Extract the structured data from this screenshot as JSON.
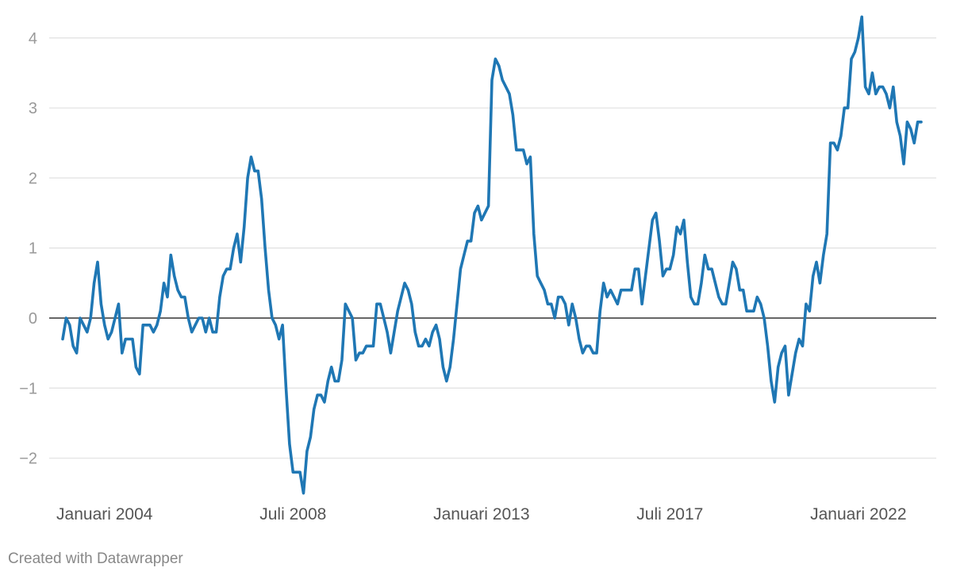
{
  "footer": {
    "credit": "Created with Datawrapper"
  },
  "colors": {
    "line": "#1f77b4",
    "grid": "#e3e3e3",
    "zero": "#333333",
    "tick": "#999999"
  },
  "chart_data": {
    "type": "line",
    "title": "",
    "xlabel": "",
    "ylabel": "",
    "grid": true,
    "ylim": [
      -2.5,
      4.3
    ],
    "y_ticks": [
      -2,
      -1,
      0,
      1,
      2,
      3,
      4
    ],
    "y_tick_labels": [
      "−2",
      "−1",
      "0",
      "1",
      "2",
      "3",
      "4"
    ],
    "x_ticks": [
      "2004-01",
      "2008-07",
      "2013-01",
      "2017-07",
      "2022-01"
    ],
    "x_tick_labels": [
      "Januari 2004",
      "Juli 2008",
      "Januari 2013",
      "Juli 2017",
      "Januari 2022"
    ],
    "series": [
      {
        "frequency": "monthly",
        "start": "2003-01",
        "values": [
          -0.3,
          0.0,
          -0.1,
          -0.4,
          -0.5,
          0.0,
          -0.1,
          -0.2,
          0.0,
          0.5,
          0.8,
          0.2,
          -0.1,
          -0.3,
          -0.2,
          0.0,
          0.2,
          -0.5,
          -0.3,
          -0.3,
          -0.3,
          -0.7,
          -0.8,
          -0.1,
          -0.1,
          -0.1,
          -0.2,
          -0.1,
          0.1,
          0.5,
          0.3,
          0.9,
          0.6,
          0.4,
          0.3,
          0.3,
          0.0,
          -0.2,
          -0.1,
          0.0,
          0.0,
          -0.2,
          0.0,
          -0.2,
          -0.2,
          0.3,
          0.6,
          0.7,
          0.7,
          1.0,
          1.2,
          0.8,
          1.3,
          2.0,
          2.3,
          2.1,
          2.1,
          1.7,
          1.0,
          0.4,
          0.0,
          -0.1,
          -0.3,
          -0.1,
          -1.0,
          -1.8,
          -2.2,
          -2.2,
          -2.2,
          -2.5,
          -1.9,
          -1.7,
          -1.3,
          -1.1,
          -1.1,
          -1.2,
          -0.9,
          -0.7,
          -0.9,
          -0.9,
          -0.6,
          0.2,
          0.1,
          0.0,
          -0.6,
          -0.5,
          -0.5,
          -0.4,
          -0.4,
          -0.4,
          0.2,
          0.2,
          0.0,
          -0.2,
          -0.5,
          -0.2,
          0.1,
          0.3,
          0.5,
          0.4,
          0.2,
          -0.2,
          -0.4,
          -0.4,
          -0.3,
          -0.4,
          -0.2,
          -0.1,
          -0.3,
          -0.7,
          -0.9,
          -0.7,
          -0.3,
          0.2,
          0.7,
          0.9,
          1.1,
          1.1,
          1.5,
          1.6,
          1.4,
          1.5,
          1.6,
          3.4,
          3.7,
          3.6,
          3.4,
          3.3,
          3.2,
          2.9,
          2.4,
          2.4,
          2.4,
          2.2,
          2.3,
          1.2,
          0.6,
          0.5,
          0.4,
          0.2,
          0.2,
          0.0,
          0.3,
          0.3,
          0.2,
          -0.1,
          0.2,
          0.0,
          -0.3,
          -0.5,
          -0.4,
          -0.4,
          -0.5,
          -0.5,
          0.1,
          0.5,
          0.3,
          0.4,
          0.3,
          0.2,
          0.4,
          0.4,
          0.4,
          0.4,
          0.7,
          0.7,
          0.2,
          0.6,
          1.0,
          1.4,
          1.5,
          1.1,
          0.6,
          0.7,
          0.7,
          0.9,
          1.3,
          1.2,
          1.4,
          0.8,
          0.3,
          0.2,
          0.2,
          0.5,
          0.9,
          0.7,
          0.7,
          0.5,
          0.3,
          0.2,
          0.2,
          0.5,
          0.8,
          0.7,
          0.4,
          0.4,
          0.1,
          0.1,
          0.1,
          0.3,
          0.2,
          0.0,
          -0.4,
          -0.9,
          -1.2,
          -0.7,
          -0.5,
          -0.4,
          -1.1,
          -0.8,
          -0.5,
          -0.3,
          -0.4,
          0.2,
          0.1,
          0.6,
          0.8,
          0.5,
          0.9,
          1.2,
          2.5,
          2.5,
          2.4,
          2.6,
          3.0,
          3.0,
          3.7,
          3.8,
          4.0,
          4.3,
          3.3,
          3.2,
          3.5,
          3.2,
          3.3,
          3.3,
          3.2,
          3.0,
          3.3,
          2.8,
          2.6,
          2.2,
          2.8,
          2.7,
          2.5,
          2.8,
          2.8
        ]
      }
    ]
  }
}
